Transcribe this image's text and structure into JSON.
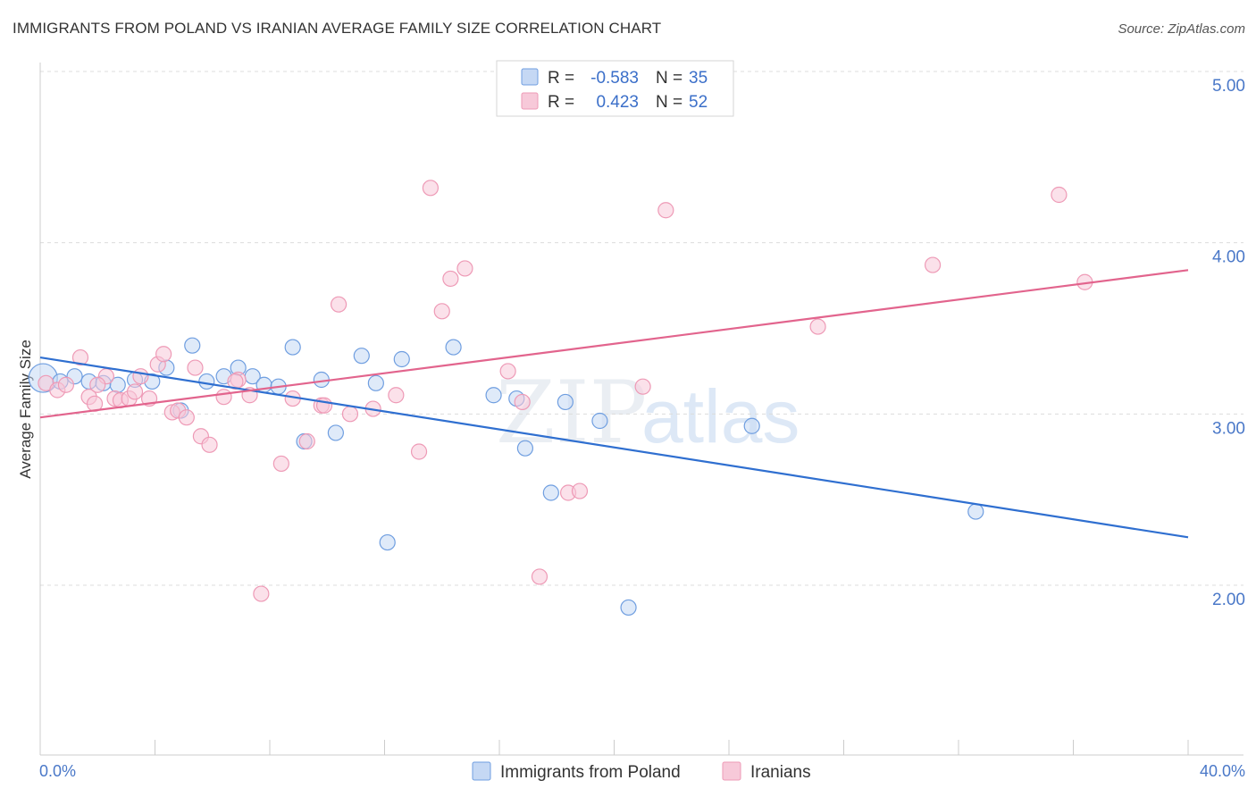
{
  "header": {
    "title": "IMMIGRANTS FROM POLAND VS IRANIAN AVERAGE FAMILY SIZE CORRELATION CHART",
    "source": "Source: ZipAtlas.com"
  },
  "watermark": {
    "zip": "ZIP",
    "atlas": "atlas"
  },
  "chart_data": {
    "type": "scatter",
    "title": "IMMIGRANTS FROM POLAND VS IRANIAN AVERAGE FAMILY SIZE CORRELATION CHART",
    "xlabel": "",
    "ylabel": "Average Family Size",
    "xlim": [
      0,
      40
    ],
    "ylim": [
      1.0,
      5.1
    ],
    "x_tick_labels": {
      "min": "0.0%",
      "max": "40.0%"
    },
    "y_ticks": [
      2.0,
      3.0,
      4.0,
      5.0
    ],
    "y_tick_labels": [
      "2.00",
      "3.00",
      "4.00",
      "5.00"
    ],
    "grid": true,
    "legend_position": "top-center",
    "stats": [
      {
        "r_label": "R = ",
        "r_value": "-0.583",
        "n_label": "N = ",
        "n_value": "35"
      },
      {
        "r_label": "R = ",
        "r_value": "0.423",
        "n_label": "N = ",
        "n_value": "52"
      }
    ],
    "series": [
      {
        "name": "Immigrants from Poland",
        "color": "#6f9ee0",
        "fill": "#c5d8f4",
        "line_color": "#2f6fd0",
        "trend": {
          "x": [
            0,
            40
          ],
          "y": [
            3.33,
            2.28
          ]
        },
        "points": [
          [
            0.1,
            3.21
          ],
          [
            0.7,
            3.19
          ],
          [
            1.2,
            3.22
          ],
          [
            1.7,
            3.19
          ],
          [
            2.2,
            3.18
          ],
          [
            2.7,
            3.17
          ],
          [
            3.3,
            3.2
          ],
          [
            4.4,
            3.27
          ],
          [
            5.3,
            3.4
          ],
          [
            5.8,
            3.19
          ],
          [
            6.4,
            3.22
          ],
          [
            6.9,
            3.27
          ],
          [
            7.4,
            3.22
          ],
          [
            7.8,
            3.17
          ],
          [
            8.3,
            3.16
          ],
          [
            8.8,
            3.39
          ],
          [
            9.2,
            2.84
          ],
          [
            9.8,
            3.2
          ],
          [
            10.3,
            2.89
          ],
          [
            11.2,
            3.34
          ],
          [
            11.7,
            3.18
          ],
          [
            12.1,
            2.25
          ],
          [
            12.6,
            3.32
          ],
          [
            14.4,
            3.39
          ],
          [
            15.8,
            3.11
          ],
          [
            16.6,
            3.09
          ],
          [
            16.9,
            2.8
          ],
          [
            17.8,
            2.54
          ],
          [
            18.3,
            3.07
          ],
          [
            19.5,
            2.96
          ],
          [
            20.5,
            1.87
          ],
          [
            24.8,
            2.93
          ],
          [
            32.6,
            2.43
          ],
          [
            3.9,
            3.19
          ],
          [
            4.9,
            3.02
          ]
        ]
      },
      {
        "name": "Iranians",
        "color": "#ee9ab6",
        "fill": "#f7c9d9",
        "line_color": "#e2648d",
        "trend": {
          "x": [
            0,
            40
          ],
          "y": [
            2.98,
            3.84
          ]
        },
        "points": [
          [
            0.2,
            3.18
          ],
          [
            0.6,
            3.14
          ],
          [
            0.9,
            3.17
          ],
          [
            1.4,
            3.33
          ],
          [
            1.7,
            3.1
          ],
          [
            1.9,
            3.06
          ],
          [
            2.3,
            3.22
          ],
          [
            2.6,
            3.09
          ],
          [
            2.8,
            3.08
          ],
          [
            3.1,
            3.09
          ],
          [
            3.3,
            3.13
          ],
          [
            3.5,
            3.22
          ],
          [
            3.8,
            3.09
          ],
          [
            4.1,
            3.29
          ],
          [
            4.3,
            3.35
          ],
          [
            4.6,
            3.01
          ],
          [
            4.8,
            3.02
          ],
          [
            5.1,
            2.98
          ],
          [
            5.4,
            3.27
          ],
          [
            5.6,
            2.87
          ],
          [
            5.9,
            2.82
          ],
          [
            6.4,
            3.1
          ],
          [
            6.9,
            3.2
          ],
          [
            7.3,
            3.11
          ],
          [
            7.7,
            1.95
          ],
          [
            8.4,
            2.71
          ],
          [
            8.8,
            3.09
          ],
          [
            9.3,
            2.84
          ],
          [
            9.8,
            3.05
          ],
          [
            10.4,
            3.64
          ],
          [
            10.8,
            3.0
          ],
          [
            11.6,
            3.03
          ],
          [
            12.4,
            3.11
          ],
          [
            13.2,
            2.78
          ],
          [
            13.6,
            4.32
          ],
          [
            14.0,
            3.6
          ],
          [
            14.3,
            3.79
          ],
          [
            14.8,
            3.85
          ],
          [
            16.3,
            3.25
          ],
          [
            16.8,
            3.07
          ],
          [
            17.4,
            2.05
          ],
          [
            18.4,
            2.54
          ],
          [
            18.8,
            2.55
          ],
          [
            21.0,
            3.16
          ],
          [
            21.8,
            4.19
          ],
          [
            27.1,
            3.51
          ],
          [
            31.1,
            3.87
          ],
          [
            35.5,
            4.28
          ],
          [
            36.4,
            3.77
          ],
          [
            9.9,
            3.05
          ],
          [
            2.0,
            3.17
          ],
          [
            6.8,
            3.19
          ]
        ]
      }
    ]
  }
}
